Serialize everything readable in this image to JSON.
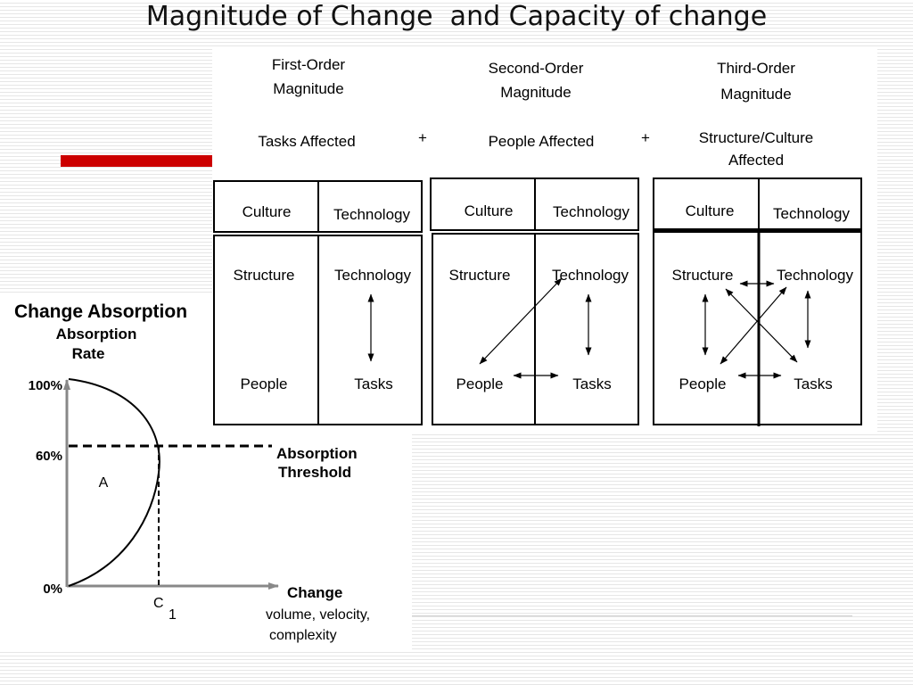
{
  "slide": {
    "title": "Magnitude of Change  and Capacity of change",
    "accent_color": "#cc0000"
  },
  "magnitude": {
    "plus_sign": "+",
    "orders": [
      {
        "heading_line1": "First-Order",
        "heading_line2": "Magnitude",
        "affected_line1": "Tasks Affected",
        "affected_line2": "",
        "culture": "Culture",
        "technology": "Technology",
        "structure": "Structure",
        "technology_inner": "Technology",
        "people": "People",
        "tasks": "Tasks"
      },
      {
        "heading_line1": "Second-Order",
        "heading_line2": "Magnitude",
        "affected_line1": "People Affected",
        "affected_line2": "",
        "culture": "Culture",
        "technology": "Technology",
        "structure": "Structure",
        "technology_inner": "Technology",
        "people": "People",
        "tasks": "Tasks"
      },
      {
        "heading_line1": "Third-Order",
        "heading_line2": "Magnitude",
        "affected_line1": "Structure/Culture",
        "affected_line2": "Affected",
        "culture": "Culture",
        "technology": "Technology",
        "structure": "Structure",
        "technology_inner": "Technology",
        "people": "People",
        "tasks": "Tasks"
      }
    ]
  },
  "absorption": {
    "title": "Change Absorption",
    "y_label_line1": "Absorption",
    "y_label_line2": "Rate",
    "tick_100": "100%",
    "tick_60": "60%",
    "tick_0": "0%",
    "area_label": "A",
    "threshold_line1": "Absorption",
    "threshold_line2": "Threshold",
    "x_label_line1": "Change",
    "x_label_line2": "volume, velocity,",
    "x_label_line3": "complexity",
    "c_label": "C",
    "c_subscript": "1"
  }
}
